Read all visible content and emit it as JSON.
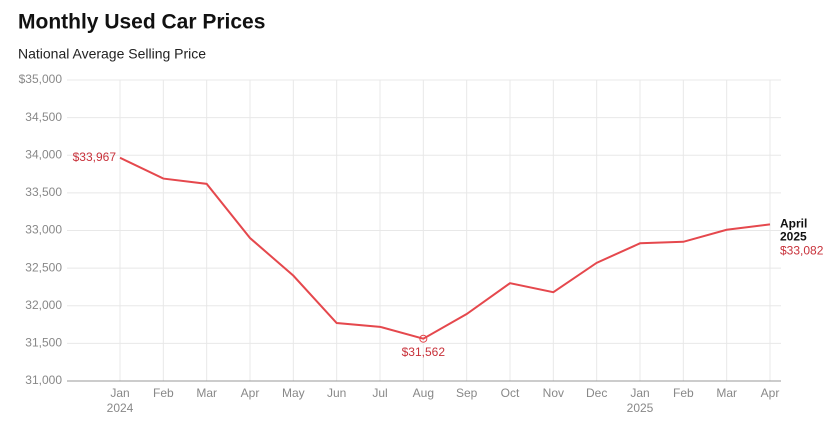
{
  "chart_data": {
    "type": "line",
    "title": "Monthly Used Car Prices",
    "subtitle": "National Average Selling Price",
    "categories": [
      "Jan",
      "Feb",
      "Mar",
      "Apr",
      "May",
      "Jun",
      "Jul",
      "Aug",
      "Sep",
      "Oct",
      "Nov",
      "Dec",
      "Jan",
      "Feb",
      "Mar",
      "Apr"
    ],
    "category_years": [
      "2024",
      null,
      null,
      null,
      null,
      null,
      null,
      null,
      null,
      null,
      null,
      null,
      "2025",
      null,
      null,
      null
    ],
    "series": [
      {
        "name": "National Average Selling Price",
        "color": "#e5484d",
        "values": [
          33967,
          33690,
          33620,
          32900,
          32400,
          31770,
          31720,
          31562,
          31890,
          32300,
          32180,
          32570,
          32830,
          32850,
          33010,
          33082
        ],
        "value_labels": [
          "$33,967",
          null,
          null,
          null,
          null,
          null,
          null,
          "$31,562",
          null,
          null,
          null,
          null,
          null,
          null,
          null,
          "$33,082"
        ]
      }
    ],
    "end_label_lines": [
      "April",
      "2025"
    ],
    "ylim": [
      31000,
      35000
    ],
    "yticks": [
      {
        "value": 31000,
        "label": "31,000"
      },
      {
        "value": 31500,
        "label": "31,500"
      },
      {
        "value": 32000,
        "label": "32,000"
      },
      {
        "value": 32500,
        "label": "32,500"
      },
      {
        "value": 33000,
        "label": "33,000"
      },
      {
        "value": 33500,
        "label": "33,500"
      },
      {
        "value": 34000,
        "label": "34,000"
      },
      {
        "value": 34500,
        "label": "34,500"
      },
      {
        "value": 35000,
        "label": "$35,000"
      }
    ],
    "grid": true
  }
}
